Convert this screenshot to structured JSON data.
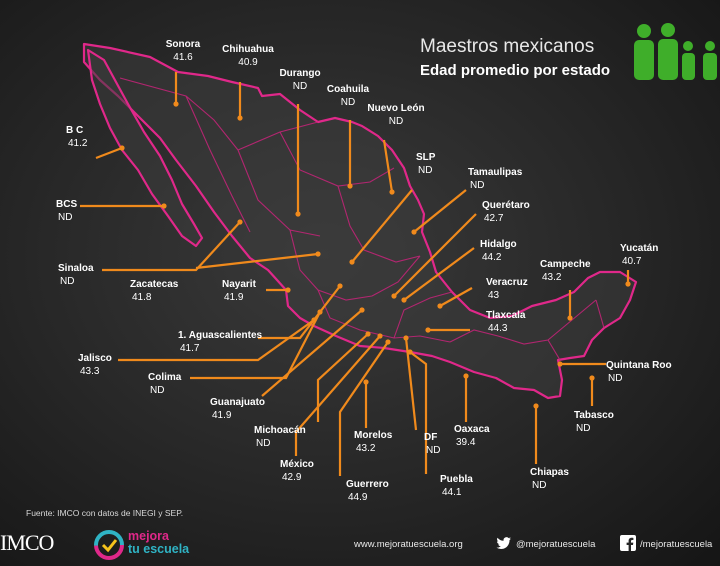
{
  "header": {
    "title": "Maestros mexicanos",
    "subtitle": "Edad promedio por estado"
  },
  "source": "Fuente: IMCO con datos de INEGI y SEP.",
  "footer": {
    "imco": "IMCO",
    "mejora_line1": "mejora",
    "mejora_line2": "tu escuela",
    "website": "www.mejoratuescuela.org",
    "twitter": "@mejoratuescuela",
    "facebook": "/mejoratuescuela"
  },
  "colors": {
    "outline": "#e0288a",
    "leader": "#f08a1c",
    "people_icon": "#3fae2a"
  },
  "states": [
    {
      "id": "sonora",
      "name": "Sonora",
      "value": "41.6"
    },
    {
      "id": "chihuahua",
      "name": "Chihuahua",
      "value": "40.9"
    },
    {
      "id": "durango",
      "name": "Durango",
      "value": "ND"
    },
    {
      "id": "coahuila",
      "name": "Coahuila",
      "value": "ND"
    },
    {
      "id": "nuevo-leon",
      "name": "Nuevo León",
      "value": "ND"
    },
    {
      "id": "bc",
      "name": "B C",
      "value": "41.2"
    },
    {
      "id": "slp",
      "name": "SLP",
      "value": "ND"
    },
    {
      "id": "tamaulipas",
      "name": "Tamaulipas",
      "value": "ND"
    },
    {
      "id": "bcs",
      "name": "BCS",
      "value": "ND"
    },
    {
      "id": "queretaro",
      "name": "Querétaro",
      "value": "42.7"
    },
    {
      "id": "hidalgo",
      "name": "Hidalgo",
      "value": "44.2"
    },
    {
      "id": "yucatan",
      "name": "Yucatán",
      "value": "40.7"
    },
    {
      "id": "campeche",
      "name": "Campeche",
      "value": "43.2"
    },
    {
      "id": "sinaloa",
      "name": "Sinaloa",
      "value": "ND"
    },
    {
      "id": "zacatecas",
      "name": "Zacatecas",
      "value": "41.8"
    },
    {
      "id": "nayarit",
      "name": "Nayarit",
      "value": "41.9"
    },
    {
      "id": "veracruz",
      "name": "Veracruz",
      "value": "43"
    },
    {
      "id": "tlaxcala",
      "name": "Tlaxcala",
      "value": "44.3"
    },
    {
      "id": "aguascalientes",
      "name": "1. Aguascalientes",
      "value": "41.7"
    },
    {
      "id": "jalisco",
      "name": "Jalisco",
      "value": "43.3"
    },
    {
      "id": "quintana-roo",
      "name": "Quintana Roo",
      "value": "ND"
    },
    {
      "id": "colima",
      "name": "Colima",
      "value": "ND"
    },
    {
      "id": "guanajuato",
      "name": "Guanajuato",
      "value": "41.9"
    },
    {
      "id": "tabasco",
      "name": "Tabasco",
      "value": "ND"
    },
    {
      "id": "michoacan",
      "name": "Michoacán",
      "value": "ND"
    },
    {
      "id": "morelos",
      "name": "Morelos",
      "value": "43.2"
    },
    {
      "id": "oaxaca",
      "name": "Oaxaca",
      "value": "39.4"
    },
    {
      "id": "df",
      "name": "DF",
      "value": "ND"
    },
    {
      "id": "chiapas",
      "name": "Chiapas",
      "value": "ND"
    },
    {
      "id": "mexico",
      "name": "México",
      "value": "42.9"
    },
    {
      "id": "guerrero",
      "name": "Guerrero",
      "value": "44.9"
    },
    {
      "id": "puebla",
      "name": "Puebla",
      "value": "44.1"
    }
  ]
}
